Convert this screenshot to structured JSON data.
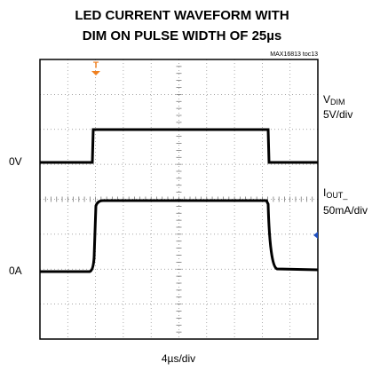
{
  "title": [
    "LED CURRENT WAVEFORM WITH",
    "DIM ON PULSE WIDTH OF 25µs"
  ],
  "figure_id": "MAX16813 toc13",
  "left_labels": [
    "0V",
    "0A"
  ],
  "channels": [
    {
      "name": "V",
      "subscript": "DIM",
      "scale": "5V/div"
    },
    {
      "name": "I",
      "subscript": "OUT_",
      "scale": "50mA/div"
    }
  ],
  "time_scale": "4µs/div"
}
